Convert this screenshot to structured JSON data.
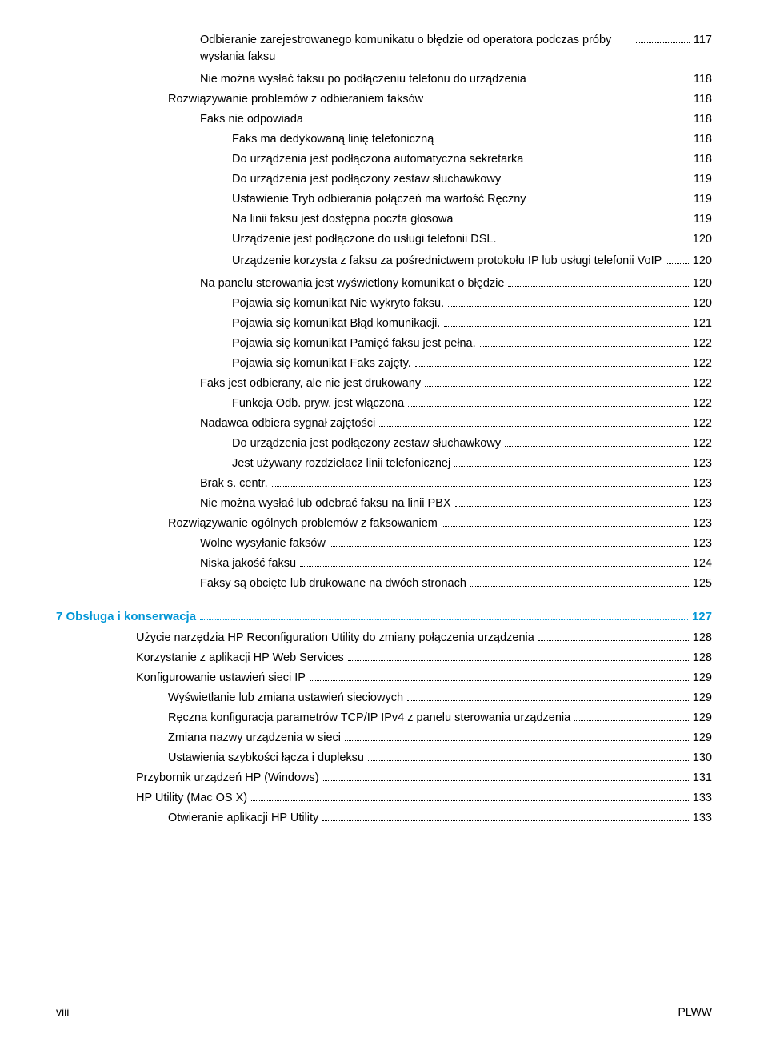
{
  "toc": [
    {
      "indent": 3,
      "text": "Odbieranie zarejestrowanego komunikatu o błędzie od operatora podczas próby wysłania faksu",
      "page": "117",
      "multiline": true
    },
    {
      "indent": 3,
      "text": "Nie można wysłać faksu po podłączeniu telefonu do urządzenia",
      "page": "118"
    },
    {
      "indent": 2,
      "text": "Rozwiązywanie problemów z odbieraniem faksów",
      "page": "118"
    },
    {
      "indent": 3,
      "text": "Faks nie odpowiada",
      "page": "118"
    },
    {
      "indent": 3,
      "text": "Faks ma dedykowaną linię telefoniczną",
      "page": "118",
      "extraIndent": 40
    },
    {
      "indent": 3,
      "text": "Do urządzenia jest podłączona automatyczna sekretarka",
      "page": "118",
      "extraIndent": 40
    },
    {
      "indent": 3,
      "text": "Do urządzenia jest podłączony zestaw słuchawkowy",
      "page": "119",
      "extraIndent": 40
    },
    {
      "indent": 3,
      "text": "Ustawienie Tryb odbierania połączeń ma wartość Ręczny",
      "page": "119",
      "extraIndent": 40
    },
    {
      "indent": 3,
      "text": "Na linii faksu jest dostępna poczta głosowa",
      "page": "119",
      "extraIndent": 40
    },
    {
      "indent": 3,
      "text": "Urządzenie jest podłączone do usługi telefonii DSL.",
      "page": "120",
      "extraIndent": 40
    },
    {
      "indent": 3,
      "text": "Urządzenie korzysta z faksu za pośrednictwem protokołu IP lub usługi telefonii VoIP",
      "page": "120",
      "extraIndent": 40,
      "multiline": true
    },
    {
      "indent": 3,
      "text": "Na panelu sterowania jest wyświetlony komunikat o błędzie",
      "page": "120"
    },
    {
      "indent": 3,
      "text": "Pojawia się komunikat Nie wykryto faksu.",
      "page": "120",
      "extraIndent": 40
    },
    {
      "indent": 3,
      "text": "Pojawia się komunikat Błąd komunikacji.",
      "page": "121",
      "extraIndent": 40
    },
    {
      "indent": 3,
      "text": "Pojawia się komunikat Pamięć faksu jest pełna.",
      "page": "122",
      "extraIndent": 40
    },
    {
      "indent": 3,
      "text": "Pojawia się komunikat Faks zajęty.",
      "page": "122",
      "extraIndent": 40
    },
    {
      "indent": 3,
      "text": "Faks jest odbierany, ale nie jest drukowany",
      "page": "122"
    },
    {
      "indent": 3,
      "text": "Funkcja Odb. pryw. jest włączona",
      "page": "122",
      "extraIndent": 40
    },
    {
      "indent": 3,
      "text": "Nadawca odbiera sygnał zajętości",
      "page": "122"
    },
    {
      "indent": 3,
      "text": "Do urządzenia jest podłączony zestaw słuchawkowy",
      "page": "122",
      "extraIndent": 40
    },
    {
      "indent": 3,
      "text": "Jest używany rozdzielacz linii telefonicznej",
      "page": "123",
      "extraIndent": 40
    },
    {
      "indent": 3,
      "text": "Brak s. centr.",
      "page": "123"
    },
    {
      "indent": 3,
      "text": "Nie można wysłać lub odebrać faksu na linii PBX",
      "page": "123"
    },
    {
      "indent": 2,
      "text": "Rozwiązywanie ogólnych problemów z faksowaniem",
      "page": "123"
    },
    {
      "indent": 3,
      "text": "Wolne wysyłanie faksów",
      "page": "123"
    },
    {
      "indent": 3,
      "text": "Niska jakość faksu",
      "page": "124"
    },
    {
      "indent": 3,
      "text": "Faksy są obcięte lub drukowane na dwóch stronach",
      "page": "125"
    }
  ],
  "chapter": {
    "num": "7",
    "title": "Obsługa i konserwacja",
    "page": "127"
  },
  "toc2": [
    {
      "indent": 1,
      "text": "Użycie narzędzia HP Reconfiguration Utility do zmiany połączenia urządzenia",
      "page": "128"
    },
    {
      "indent": 1,
      "text": "Korzystanie z aplikacji HP Web Services",
      "page": "128"
    },
    {
      "indent": 1,
      "text": "Konfigurowanie ustawień sieci IP",
      "page": "129"
    },
    {
      "indent": 2,
      "text": "Wyświetlanie lub zmiana ustawień sieciowych",
      "page": "129"
    },
    {
      "indent": 2,
      "text": "Ręczna konfiguracja parametrów TCP/IP IPv4 z panelu sterowania urządzenia",
      "page": "129"
    },
    {
      "indent": 2,
      "text": "Zmiana nazwy urządzenia w sieci",
      "page": "129"
    },
    {
      "indent": 2,
      "text": "Ustawienia szybkości łącza i dupleksu",
      "page": "130"
    },
    {
      "indent": 1,
      "text": "Przybornik urządzeń HP (Windows)",
      "page": "131"
    },
    {
      "indent": 1,
      "text": "HP Utility (Mac OS X)",
      "page": "133"
    },
    {
      "indent": 2,
      "text": "Otwieranie aplikacji HP Utility",
      "page": "133"
    }
  ],
  "footer": {
    "left": "viii",
    "right": "PLWW"
  }
}
